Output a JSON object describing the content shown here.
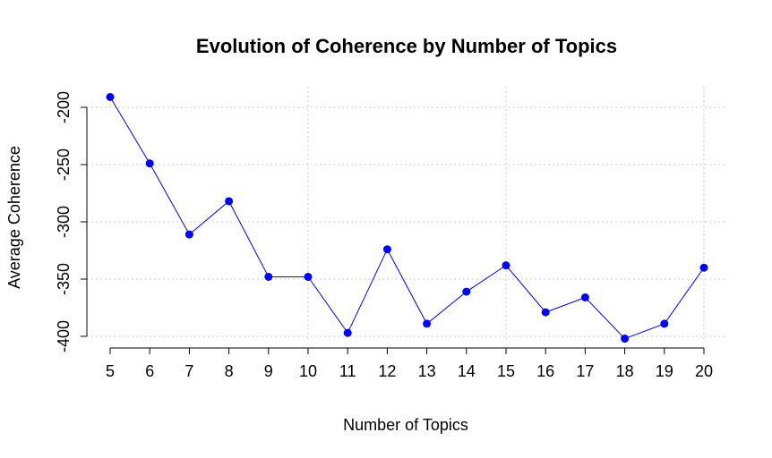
{
  "chart_data": {
    "type": "line",
    "title": "Evolution of Coherence by Number of Topics",
    "xlabel": "Number of Topics",
    "ylabel": "Average Coherence",
    "x": [
      5,
      6,
      7,
      8,
      9,
      10,
      11,
      12,
      13,
      14,
      15,
      16,
      17,
      18,
      19,
      20
    ],
    "series": [
      {
        "values": [
          -191,
          -249,
          -311,
          -282,
          -348,
          -348,
          -397,
          -324,
          -389,
          -361,
          -338,
          -379,
          -366,
          -402,
          -389,
          -340
        ]
      }
    ],
    "xticks": [
      "5",
      "6",
      "7",
      "8",
      "9",
      "10",
      "11",
      "12",
      "13",
      "14",
      "15",
      "16",
      "17",
      "18",
      "19",
      "20"
    ],
    "yticks": [
      "-200",
      "-250",
      "-300",
      "-350",
      "-400"
    ],
    "ytick_values": [
      -200,
      -250,
      -300,
      -350,
      -400
    ],
    "xgrid_values": [
      10,
      15,
      20
    ],
    "ylim": [
      -400,
      -200
    ],
    "xlim": [
      5,
      20
    ],
    "grid": true,
    "legend": "none",
    "colors": {
      "series": "#0000ff",
      "grid": "#cccccc",
      "axis": "#000000"
    }
  }
}
